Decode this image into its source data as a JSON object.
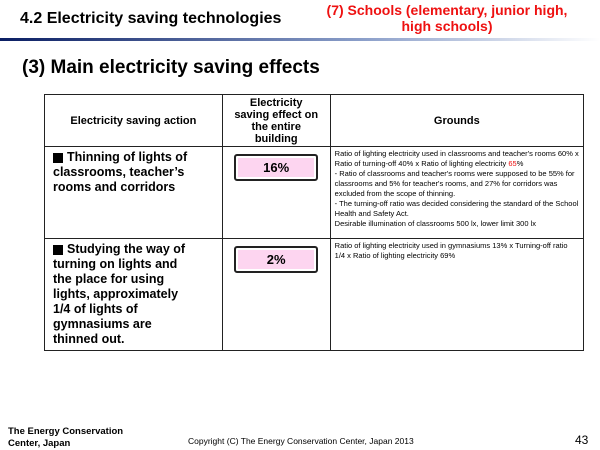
{
  "header": {
    "title": "4.2 Electricity saving technologies",
    "subtitle_line1": "(7) Schools (elementary, junior high,",
    "subtitle_line2": "high schools)"
  },
  "section_title": "(3) Main electricity saving effects",
  "table": {
    "headers": {
      "action": "Electricity saving action",
      "effect_line1": "Electricity",
      "effect_line2": "saving effect on",
      "effect_line3": "the entire",
      "effect_line4": "building",
      "grounds": "Grounds"
    },
    "rows": [
      {
        "action_lines": [
          "Thinning of lights of",
          "classrooms, teacher’s",
          "rooms and corridors"
        ],
        "effect": "16%",
        "grounds_line1": "Ratio of lighting electricity used in classrooms and teacher's rooms 60% x Ratio of turning-off 40% x Ratio of lighting electricity ",
        "grounds_highlight": "65",
        "grounds_line1_end": "%",
        "grounds_line2": "- Ratio of classrooms and teacher's rooms were supposed to be 55% for classrooms and 5% for teacher's rooms, and 27% for corridors was excluded from the scope of thinning.",
        "grounds_line3": "- The turning-off ratio was decided considering the standard of the School Health and Safety Act.",
        "grounds_line4": "Desirable illumination of classrooms 500 lx, lower limit 300 lx"
      },
      {
        "action_lines": [
          "Studying the way of",
          "turning on lights and",
          "the place for using",
          "lights, approximately",
          "1/4 of lights of",
          "gymnasiums are",
          "thinned out."
        ],
        "effect": "2%",
        "grounds_line1": "Ratio of lighting electricity used in gymnasiums 13% x Turning-off ratio 1/4 x Ratio of lighting electricity 69%"
      }
    ]
  },
  "footer": {
    "org_line1": "The Energy Conservation",
    "org_line2": "Center, Japan",
    "copyright": "Copyright (C) The Energy Conservation Center, Japan 2013",
    "page_number": "43"
  }
}
